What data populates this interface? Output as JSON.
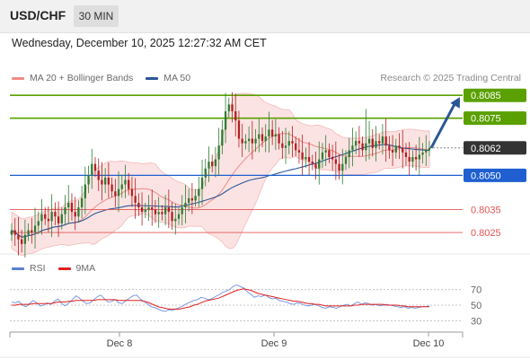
{
  "header": {
    "symbol": "USD/CHF",
    "interval": "30 MIN"
  },
  "datetime": "Wednesday, December 10, 2025 12:27:32 AM CET",
  "legend": {
    "ma_bb": {
      "label": "MA 20 + Bollinger Bands",
      "color": "#f08a8a"
    },
    "ma50": {
      "label": "MA 50",
      "color": "#2b5797"
    }
  },
  "credit": "Research © 2025 Trading Central",
  "indicator_legend": {
    "rsi": {
      "label": "RSI",
      "color": "#5b7fd4"
    },
    "ma9": {
      "label": "9MA",
      "color": "#e02020"
    }
  },
  "colors": {
    "up": "#2e7d32",
    "down": "#b02020",
    "resistance": "#5aa000",
    "pivot": "#1f5fd0",
    "support": "#e05555",
    "current": "#333333",
    "arrow": "#2b5797"
  },
  "chart_data": [
    {
      "type": "candlestick",
      "x_ticks": [
        "Dec 8",
        "Dec 9",
        "Dec 10"
      ],
      "y_range": [
        0.8016,
        0.8089
      ],
      "levels": [
        {
          "value": "0.8085",
          "kind": "resistance"
        },
        {
          "value": "0.8075",
          "kind": "resistance"
        },
        {
          "value": "0.8062",
          "kind": "current"
        },
        {
          "value": "0.8050",
          "kind": "pivot"
        },
        {
          "value": "0.8035",
          "kind": "support"
        },
        {
          "value": "0.8025",
          "kind": "support"
        }
      ],
      "series": [
        {
          "name": "MA 20 + Bollinger Bands"
        },
        {
          "name": "MA 50"
        }
      ],
      "close": [
        0.8026,
        0.8024,
        0.8022,
        0.802,
        0.8024,
        0.8026,
        0.8025,
        0.8028,
        0.803,
        0.8033,
        0.8031,
        0.803,
        0.8034,
        0.8032,
        0.8029,
        0.8033,
        0.8036,
        0.8038,
        0.8034,
        0.8032,
        0.8036,
        0.804,
        0.8046,
        0.805,
        0.8055,
        0.8052,
        0.8048,
        0.8046,
        0.8049,
        0.8046,
        0.8043,
        0.8041,
        0.8044,
        0.8046,
        0.8048,
        0.8044,
        0.8041,
        0.8038,
        0.8036,
        0.8034,
        0.8035,
        0.8036,
        0.8035,
        0.8033,
        0.8034,
        0.8033,
        0.8036,
        0.8034,
        0.803,
        0.8031,
        0.8033,
        0.8036,
        0.8038,
        0.804,
        0.8039,
        0.8041,
        0.8044,
        0.8049,
        0.8053,
        0.8056,
        0.8054,
        0.8057,
        0.8063,
        0.807,
        0.8078,
        0.8081,
        0.8078,
        0.8074,
        0.8066,
        0.8064,
        0.8065,
        0.8066,
        0.8064,
        0.8066,
        0.8068,
        0.8065,
        0.8067,
        0.807,
        0.8067,
        0.8068,
        0.8064,
        0.8062,
        0.8063,
        0.8065,
        0.8064,
        0.8061,
        0.806,
        0.8057,
        0.8058,
        0.8056,
        0.8055,
        0.8053,
        0.8057,
        0.806,
        0.8061,
        0.8058,
        0.8057,
        0.8055,
        0.8052,
        0.8055,
        0.8058,
        0.8061,
        0.8063,
        0.8065,
        0.8064,
        0.8061,
        0.8064,
        0.8066,
        0.8062,
        0.8065,
        0.8064,
        0.8067,
        0.8063,
        0.8061,
        0.806,
        0.8063,
        0.8062,
        0.806,
        0.8058,
        0.8056,
        0.8058,
        0.8057,
        0.8059,
        0.806,
        0.8061,
        0.8062
      ],
      "rsi": [
        54,
        53,
        55,
        50,
        48,
        52,
        56,
        53,
        49,
        50,
        53,
        51,
        55,
        58,
        52,
        49,
        53,
        57,
        62,
        59,
        55,
        52,
        53,
        57,
        61,
        63,
        58,
        54,
        55,
        57,
        53,
        52,
        56,
        59,
        62,
        63,
        58,
        55,
        52,
        48,
        47,
        45,
        43,
        42,
        44,
        43,
        45,
        47,
        49,
        52,
        54,
        56,
        57,
        60,
        59,
        57,
        58,
        61,
        63,
        66,
        68,
        70,
        74,
        76,
        74,
        72,
        67,
        64,
        60,
        62,
        61,
        63,
        60,
        58,
        59,
        56,
        55,
        54,
        52,
        51,
        53,
        52,
        50,
        49,
        50,
        51,
        49,
        47,
        46,
        48,
        47,
        46,
        48,
        50,
        51,
        49,
        52,
        54,
        51,
        53,
        52,
        50,
        51,
        49,
        50,
        51,
        50,
        49,
        48,
        47,
        48,
        46,
        47,
        46,
        47,
        48,
        48,
        49
      ],
      "ma9": [
        50,
        50,
        51,
        51,
        51,
        51,
        52,
        52,
        52,
        52,
        52,
        52,
        53,
        54,
        54,
        54,
        55,
        55,
        56,
        56,
        56,
        56,
        56,
        56,
        57,
        57,
        57,
        57,
        57,
        57,
        56,
        56,
        56,
        56,
        56,
        56,
        56,
        55,
        54,
        52,
        50,
        48,
        47,
        46,
        45,
        45,
        45,
        45,
        46,
        47,
        48,
        50,
        51,
        53,
        55,
        56,
        57,
        58,
        59,
        61,
        63,
        65,
        67,
        69,
        70,
        71,
        70,
        69,
        67,
        65,
        64,
        63,
        62,
        61,
        60,
        59,
        58,
        57,
        56,
        55,
        55,
        54,
        53,
        52,
        52,
        51,
        51,
        50,
        49,
        49,
        49,
        49,
        49,
        49,
        49,
        49,
        50,
        50,
        51,
        51,
        51,
        51,
        51,
        51,
        51,
        50,
        50,
        50,
        50,
        49,
        49,
        48,
        48,
        48,
        48,
        48,
        48,
        48
      ],
      "rsi_ticks": [
        70,
        50,
        30
      ]
    }
  ]
}
